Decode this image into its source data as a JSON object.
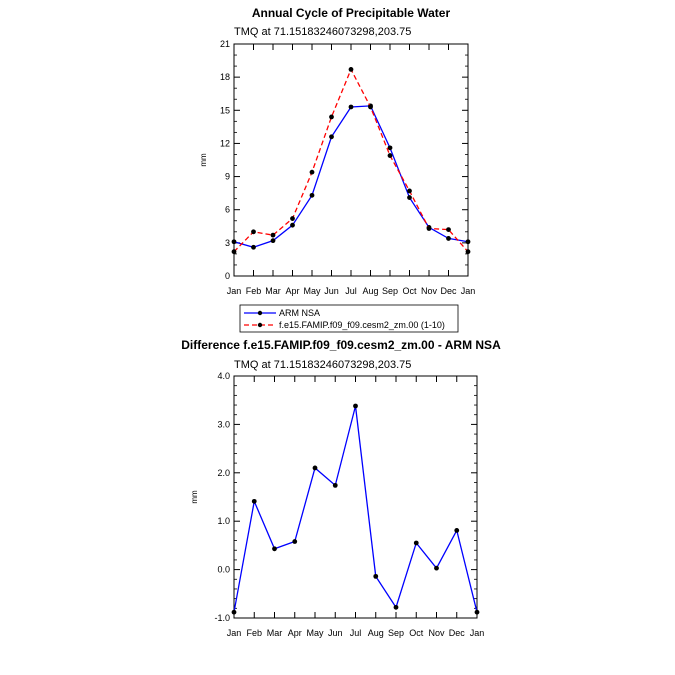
{
  "chart_data": [
    {
      "type": "line",
      "title": "Annual Cycle of Precipitable Water",
      "subtitle": "TMQ at 71.15183246073298,203.75",
      "xlabel": "",
      "ylabel": "mm",
      "ylim": [
        0,
        21
      ],
      "yticks": [
        "0",
        "3",
        "6",
        "9",
        "12",
        "15",
        "18",
        "21"
      ],
      "categories": [
        "Jan",
        "Feb",
        "Mar",
        "Apr",
        "May",
        "Jun",
        "Jul",
        "Aug",
        "Sep",
        "Oct",
        "Nov",
        "Dec",
        "Jan"
      ],
      "series": [
        {
          "name": "ARM NSA",
          "color": "#0000ff",
          "dash": "solid",
          "values": [
            3.1,
            2.6,
            3.2,
            4.6,
            7.3,
            12.6,
            15.3,
            15.4,
            11.6,
            7.1,
            4.4,
            3.4,
            3.1
          ]
        },
        {
          "name": "f.e15.FAMIP.f09_f09.cesm2_zm.00 (1-10)",
          "color": "#ff0000",
          "dash": "dashed",
          "values": [
            2.2,
            4.0,
            3.7,
            5.2,
            9.4,
            14.4,
            18.7,
            15.3,
            10.9,
            7.7,
            4.3,
            4.2,
            2.2
          ]
        }
      ],
      "legend_position": "bottom"
    },
    {
      "type": "line",
      "title": "Difference f.e15.FAMIP.f09_f09.cesm2_zm.00 - ARM NSA",
      "subtitle": "TMQ at 71.15183246073298,203.75",
      "xlabel": "",
      "ylabel": "mm",
      "ylim": [
        -1.0,
        4.0
      ],
      "yticks": [
        "-1.0",
        "0.0",
        "1.0",
        "2.0",
        "3.0",
        "4.0"
      ],
      "categories": [
        "Jan",
        "Feb",
        "Mar",
        "Apr",
        "May",
        "Jun",
        "Jul",
        "Aug",
        "Sep",
        "Oct",
        "Nov",
        "Dec",
        "Jan"
      ],
      "series": [
        {
          "name": "Difference",
          "color": "#0000ff",
          "dash": "solid",
          "values": [
            -0.88,
            1.41,
            0.43,
            0.58,
            2.1,
            1.74,
            3.38,
            -0.14,
            -0.78,
            0.55,
            0.03,
            0.81,
            -0.88
          ]
        }
      ]
    }
  ]
}
